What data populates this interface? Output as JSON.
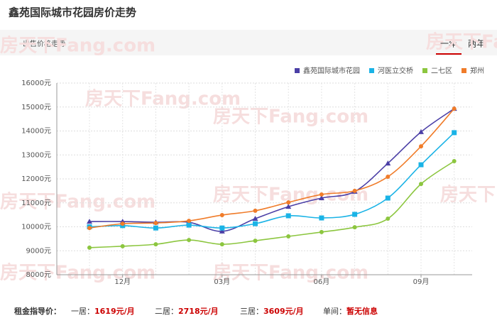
{
  "header": {
    "title": "鑫苑国际城市花园房价走势",
    "subtitle": "出售价格走势",
    "tabs": [
      "一年",
      "两年"
    ]
  },
  "watermark": "房天下Fang.com",
  "chart_data": {
    "type": "line",
    "categories": [
      null,
      "12月",
      null,
      null,
      "03月",
      null,
      null,
      "06月",
      null,
      null,
      "09月",
      null
    ],
    "ylim": [
      8000,
      16000
    ],
    "yticks": [
      {
        "value": 8000,
        "label": "8000元"
      },
      {
        "value": 9000,
        "label": "9000元"
      },
      {
        "value": 10000,
        "label": "10000元"
      },
      {
        "value": 11000,
        "label": "11000元"
      },
      {
        "value": 12000,
        "label": "12000元"
      },
      {
        "value": 13000,
        "label": "13000元"
      },
      {
        "value": 14000,
        "label": "14000元"
      },
      {
        "value": 15000,
        "label": "15000元"
      },
      {
        "value": 16000,
        "label": "16000元"
      }
    ],
    "grid": true,
    "legend": "top-right",
    "series": [
      {
        "name": "鑫苑国际城市花园",
        "color": "#4b3fa6",
        "marker": "triangle",
        "values": [
          10220,
          10220,
          10190,
          10190,
          9810,
          10340,
          10840,
          11200,
          11470,
          12650,
          13960,
          14930
        ]
      },
      {
        "name": "河医立交桥",
        "color": "#1ab3e6",
        "marker": "square",
        "values": [
          10000,
          10050,
          9950,
          10070,
          9950,
          10130,
          10460,
          10370,
          10520,
          11200,
          12590,
          13930
        ]
      },
      {
        "name": "二七区",
        "color": "#8cc63f",
        "marker": "circle",
        "values": [
          9130,
          9190,
          9270,
          9450,
          9270,
          9420,
          9600,
          9780,
          9980,
          10340,
          11790,
          12740
        ]
      },
      {
        "name": "郑州",
        "color": "#f07c2a",
        "marker": "circle",
        "values": [
          9950,
          10130,
          10160,
          10250,
          10490,
          10670,
          11020,
          11350,
          11500,
          12090,
          13360,
          14930
        ]
      }
    ]
  },
  "footer": {
    "label": "租金指导价：",
    "items": [
      {
        "name": "一居：",
        "value": "1619元/月"
      },
      {
        "name": "二居：",
        "value": "2718元/月"
      },
      {
        "name": "三居：",
        "value": "3609元/月"
      },
      {
        "name": "单间：",
        "value": "暂无信息"
      }
    ]
  }
}
